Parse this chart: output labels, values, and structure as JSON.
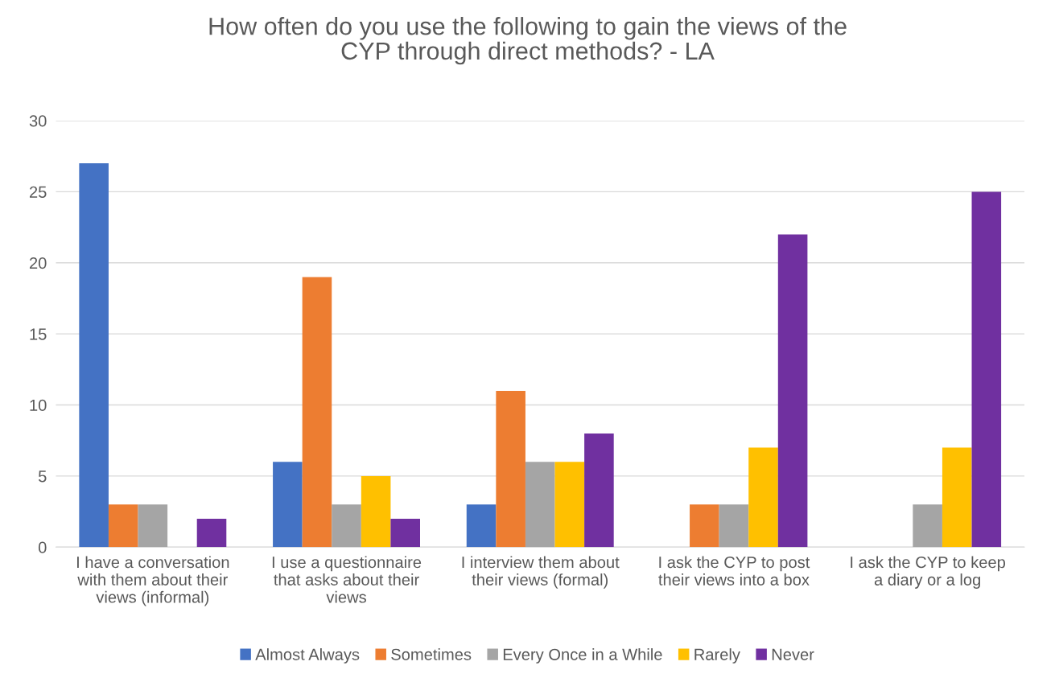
{
  "chart_data": {
    "type": "bar",
    "title": "How often do you use the following to gain the views of the\nCYP through direct methods? - LA",
    "categories": [
      "I have a conversation\nwith them about their\nviews (informal)",
      "I use a questionnaire\nthat asks about their\nviews",
      "I interview them about\ntheir views (formal)",
      "I ask the CYP to post\ntheir views into a box",
      "I ask the CYP to keep\na diary or a log"
    ],
    "series": [
      {
        "name": "Almost Always",
        "color": "#4472c4",
        "values": [
          27,
          6,
          3,
          0,
          0
        ]
      },
      {
        "name": "Sometimes",
        "color": "#ed7d31",
        "values": [
          3,
          19,
          11,
          3,
          0
        ]
      },
      {
        "name": "Every Once in a While",
        "color": "#a5a5a5",
        "values": [
          3,
          3,
          6,
          3,
          3
        ]
      },
      {
        "name": "Rarely",
        "color": "#ffc000",
        "values": [
          0,
          5,
          6,
          7,
          7
        ]
      },
      {
        "name": "Never",
        "color": "#7030a0",
        "values": [
          2,
          2,
          8,
          22,
          25
        ]
      }
    ],
    "ylim": [
      0,
      30
    ],
    "yticks": [
      0,
      5,
      10,
      15,
      20,
      25,
      30
    ],
    "grid": "y",
    "legend": "bottom"
  }
}
